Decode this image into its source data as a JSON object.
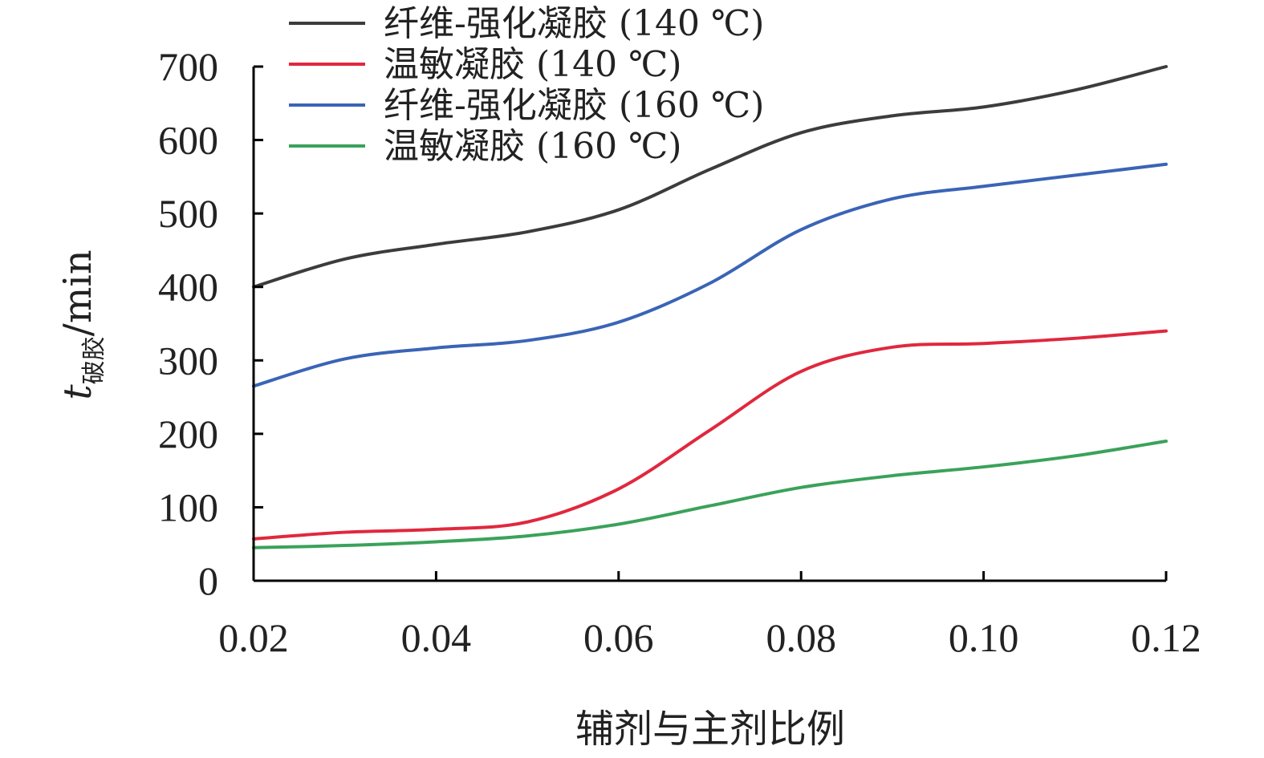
{
  "chart_data": {
    "type": "line",
    "title": "",
    "xlabel": "辅剂与主剂比例",
    "ylabel": {
      "var": "t",
      "sub": "破胶",
      "unit": "/min"
    },
    "xlim": [
      0.02,
      0.12
    ],
    "ylim": [
      0,
      700
    ],
    "x_ticks": [
      "0.02",
      "0.04",
      "0.06",
      "0.08",
      "0.10",
      "0.12"
    ],
    "y_ticks": [
      "0",
      "100",
      "200",
      "300",
      "400",
      "500",
      "600",
      "700"
    ],
    "grid": false,
    "legend_position": "top-left",
    "x": [
      0.02,
      0.03,
      0.04,
      0.05,
      0.06,
      0.07,
      0.08,
      0.09,
      0.1,
      0.11,
      0.12
    ],
    "series": [
      {
        "name": "纤维-强化凝胶 (140 ℃)",
        "color": "#3c3c3e",
        "values": [
          400,
          438,
          458,
          475,
          505,
          560,
          610,
          633,
          645,
          668,
          700
        ]
      },
      {
        "name": "温敏凝胶 (140 ℃)",
        "color": "#e0283e",
        "values": [
          57,
          66,
          70,
          80,
          125,
          205,
          285,
          318,
          323,
          330,
          340
        ]
      },
      {
        "name": "纤维-强化凝胶 (160 ℃)",
        "color": "#3a64b6",
        "values": [
          265,
          302,
          317,
          327,
          352,
          405,
          478,
          520,
          537,
          552,
          567
        ]
      },
      {
        "name": "温敏凝胶 (160 ℃)",
        "color": "#3aa25a",
        "values": [
          45,
          48,
          53,
          61,
          77,
          102,
          127,
          143,
          155,
          170,
          190
        ]
      }
    ]
  }
}
